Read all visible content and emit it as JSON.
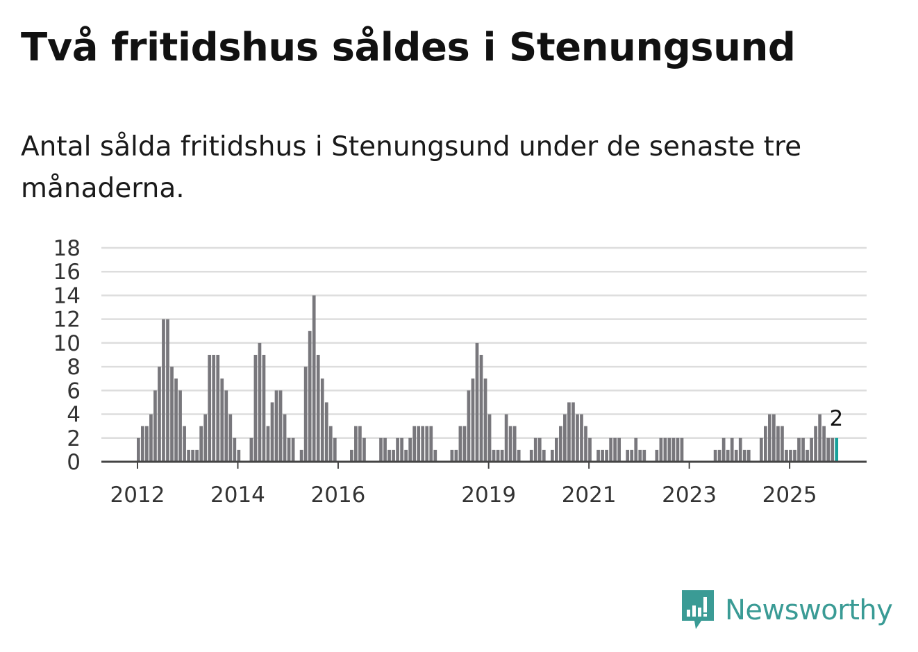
{
  "header": {
    "title": "Två fritidshus såldes i Stenungsund",
    "subtitle": "Antal sålda fritidshus i Stenungsund under de senaste tre månaderna."
  },
  "brand": {
    "name": "Newsworthy",
    "color": "#3a9b95"
  },
  "colors": {
    "bar": "#78777c",
    "highlight": "#17a19b",
    "grid": "#dddddd",
    "axis": "#444444"
  },
  "chart_data": {
    "type": "bar",
    "title": "Två fritidshus såldes i Stenungsund",
    "ylabel": "",
    "xlabel": "",
    "ylim": [
      0,
      18
    ],
    "yticks": [
      0,
      2,
      4,
      6,
      8,
      10,
      12,
      14,
      16,
      18
    ],
    "grid": true,
    "start": {
      "year": 2011,
      "month": 4
    },
    "xtick_labels": [
      {
        "year": 2012,
        "label": "2012"
      },
      {
        "year": 2014,
        "label": "2014"
      },
      {
        "year": 2016,
        "label": "2016"
      },
      {
        "year": 2019,
        "label": "2019"
      },
      {
        "year": 2021,
        "label": "2021"
      },
      {
        "year": 2023,
        "label": "2023"
      },
      {
        "year": 2025,
        "label": "2025"
      }
    ],
    "annotation": {
      "label": "2",
      "index": "last"
    },
    "values": [
      0,
      0,
      0,
      0,
      0,
      0,
      0,
      0,
      0,
      2,
      3,
      3,
      4,
      6,
      8,
      12,
      12,
      8,
      7,
      6,
      3,
      1,
      1,
      1,
      3,
      4,
      9,
      9,
      9,
      7,
      6,
      4,
      2,
      1,
      0,
      0,
      2,
      9,
      10,
      9,
      3,
      5,
      6,
      6,
      4,
      2,
      2,
      0,
      1,
      8,
      11,
      14,
      9,
      7,
      5,
      3,
      2,
      0,
      0,
      0,
      1,
      3,
      3,
      2,
      0,
      0,
      0,
      2,
      2,
      1,
      1,
      2,
      2,
      1,
      2,
      3,
      3,
      3,
      3,
      3,
      1,
      0,
      0,
      0,
      1,
      1,
      3,
      3,
      6,
      7,
      10,
      9,
      7,
      4,
      1,
      1,
      1,
      4,
      3,
      3,
      1,
      0,
      0,
      1,
      2,
      2,
      1,
      0,
      1,
      2,
      3,
      4,
      5,
      5,
      4,
      4,
      3,
      2,
      0,
      1,
      1,
      1,
      2,
      2,
      2,
      0,
      1,
      1,
      2,
      1,
      1,
      0,
      0,
      1,
      2,
      2,
      2,
      2,
      2,
      2,
      0,
      0,
      0,
      0,
      0,
      0,
      0,
      1,
      1,
      2,
      1,
      2,
      1,
      2,
      1,
      1,
      0,
      0,
      2,
      3,
      4,
      4,
      3,
      3,
      1,
      1,
      1,
      2,
      2,
      1,
      2,
      3,
      4,
      3,
      2,
      2,
      2
    ]
  }
}
